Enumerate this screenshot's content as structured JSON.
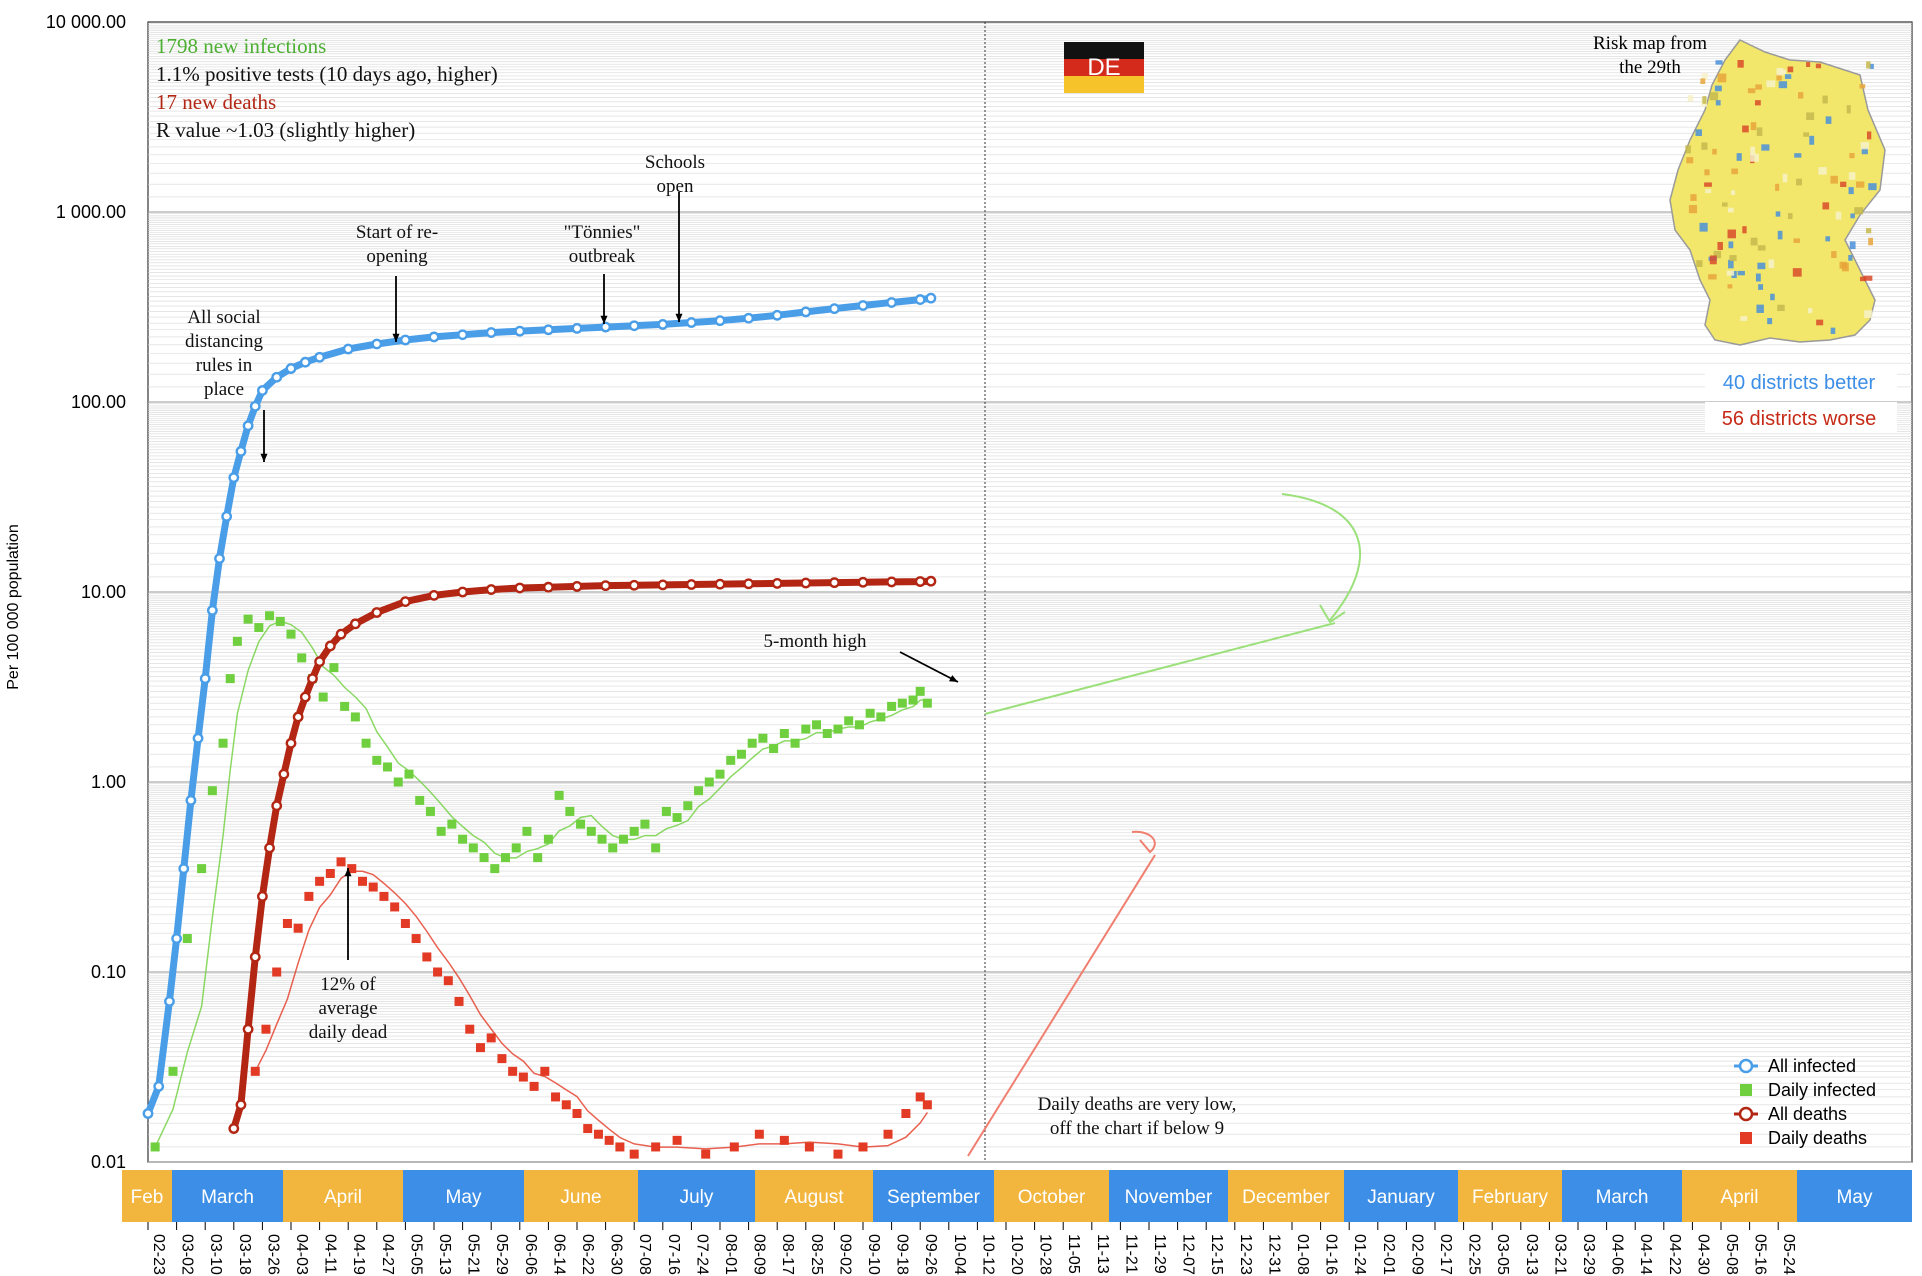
{
  "chart_data": {
    "type": "scatter",
    "title": "",
    "ylabel": "Per 100 000 population",
    "y_scale": "log",
    "ylim": [
      0.01,
      10000
    ],
    "y_ticks": [
      "10 000.00",
      "1 000.00",
      "100.00",
      "10.00",
      "1.00",
      "0.10",
      "0.01"
    ],
    "y_tick_values": [
      10000,
      1000,
      100,
      10,
      1,
      0.1,
      0.01
    ],
    "grid": true,
    "x_tick_labels": [
      "02-23",
      "03-02",
      "03-10",
      "03-18",
      "03-26",
      "04-03",
      "04-11",
      "04-19",
      "04-27",
      "05-05",
      "05-13",
      "05-21",
      "05-29",
      "06-06",
      "06-14",
      "06-22",
      "06-30",
      "07-08",
      "07-16",
      "07-24",
      "08-01",
      "08-09",
      "08-17",
      "08-25",
      "09-02",
      "09-10",
      "09-18",
      "09-26",
      "10-04",
      "10-12",
      "10-20",
      "10-28",
      "11-05",
      "11-13",
      "11-21",
      "11-29",
      "12-07",
      "12-15",
      "12-23",
      "12-31",
      "01-08",
      "01-16",
      "01-24",
      "02-01",
      "02-09",
      "02-17",
      "02-25",
      "03-05",
      "03-13",
      "03-21",
      "03-29",
      "04-06",
      "04-14",
      "04-22",
      "04-30",
      "05-08",
      "05-16",
      "05-24"
    ],
    "months": [
      {
        "label": "Feb",
        "color": "#f2b53d"
      },
      {
        "label": "March",
        "color": "#3d8ee6"
      },
      {
        "label": "April",
        "color": "#f2b53d"
      },
      {
        "label": "May",
        "color": "#3d8ee6"
      },
      {
        "label": "June",
        "color": "#f2b53d"
      },
      {
        "label": "July",
        "color": "#3d8ee6"
      },
      {
        "label": "August",
        "color": "#f2b53d"
      },
      {
        "label": "September",
        "color": "#3d8ee6"
      },
      {
        "label": "October",
        "color": "#f2b53d"
      },
      {
        "label": "November",
        "color": "#3d8ee6"
      },
      {
        "label": "December",
        "color": "#f2b53d"
      },
      {
        "label": "January",
        "color": "#3d8ee6"
      },
      {
        "label": "February",
        "color": "#f2b53d"
      },
      {
        "label": "March",
        "color": "#3d8ee6"
      },
      {
        "label": "April",
        "color": "#f2b53d"
      },
      {
        "label": "May",
        "color": "#3d8ee6"
      }
    ],
    "series": [
      {
        "name": "All infected",
        "color": "#4a9ee8",
        "marker": "circle",
        "x": [
          "02-23",
          "02-26",
          "02-29",
          "03-02",
          "03-04",
          "03-06",
          "03-08",
          "03-10",
          "03-12",
          "03-14",
          "03-16",
          "03-18",
          "03-20",
          "03-22",
          "03-24",
          "03-26",
          "03-30",
          "04-03",
          "04-07",
          "04-11",
          "04-19",
          "04-27",
          "05-05",
          "05-13",
          "05-21",
          "05-29",
          "06-06",
          "06-14",
          "06-22",
          "06-30",
          "07-08",
          "07-16",
          "07-24",
          "08-01",
          "08-09",
          "08-17",
          "08-25",
          "09-02",
          "09-10",
          "09-18",
          "09-26",
          "09-29"
        ],
        "values": [
          0.018,
          0.025,
          0.07,
          0.15,
          0.35,
          0.8,
          1.7,
          3.5,
          8,
          15,
          25,
          40,
          55,
          75,
          95,
          115,
          135,
          150,
          162,
          172,
          190,
          202,
          212,
          220,
          226,
          232,
          236,
          240,
          244,
          248,
          252,
          256,
          262,
          268,
          276,
          286,
          298,
          310,
          322,
          334,
          346,
          352
        ]
      },
      {
        "name": "Daily infected",
        "color": "#6fcf3e",
        "marker": "square",
        "x": [
          "02-25",
          "03-01",
          "03-05",
          "03-09",
          "03-12",
          "03-15",
          "03-17",
          "03-19",
          "03-22",
          "03-25",
          "03-28",
          "03-31",
          "04-03",
          "04-06",
          "04-09",
          "04-12",
          "04-15",
          "04-18",
          "04-21",
          "04-24",
          "04-27",
          "04-30",
          "05-03",
          "05-06",
          "05-09",
          "05-12",
          "05-15",
          "05-18",
          "05-21",
          "05-24",
          "05-27",
          "05-30",
          "06-02",
          "06-05",
          "06-08",
          "06-11",
          "06-14",
          "06-17",
          "06-20",
          "06-23",
          "06-26",
          "06-29",
          "07-02",
          "07-05",
          "07-08",
          "07-11",
          "07-14",
          "07-17",
          "07-20",
          "07-23",
          "07-26",
          "07-29",
          "08-01",
          "08-04",
          "08-07",
          "08-10",
          "08-13",
          "08-16",
          "08-19",
          "08-22",
          "08-25",
          "08-28",
          "08-31",
          "09-03",
          "09-06",
          "09-09",
          "09-12",
          "09-15",
          "09-18",
          "09-21",
          "09-24",
          "09-26",
          "09-28"
        ],
        "values": [
          0.012,
          0.03,
          0.15,
          0.35,
          0.9,
          1.6,
          3.5,
          5.5,
          7.2,
          6.5,
          7.5,
          7.0,
          6.0,
          4.5,
          3.5,
          2.8,
          4.0,
          2.5,
          2.2,
          1.6,
          1.3,
          1.2,
          1.0,
          1.1,
          0.8,
          0.7,
          0.55,
          0.6,
          0.5,
          0.45,
          0.4,
          0.35,
          0.4,
          0.45,
          0.55,
          0.4,
          0.5,
          0.85,
          0.7,
          0.6,
          0.55,
          0.5,
          0.45,
          0.5,
          0.55,
          0.6,
          0.45,
          0.7,
          0.65,
          0.75,
          0.9,
          1.0,
          1.1,
          1.3,
          1.4,
          1.6,
          1.7,
          1.5,
          1.8,
          1.6,
          1.9,
          2.0,
          1.8,
          1.9,
          2.1,
          2.0,
          2.3,
          2.2,
          2.5,
          2.6,
          2.7,
          3.0,
          2.6
        ]
      },
      {
        "name": "All deaths",
        "color": "#b22613",
        "marker": "circle",
        "x": [
          "03-18",
          "03-20",
          "03-22",
          "03-24",
          "03-26",
          "03-28",
          "03-30",
          "04-01",
          "04-03",
          "04-05",
          "04-07",
          "04-09",
          "04-11",
          "04-14",
          "04-17",
          "04-21",
          "04-27",
          "05-05",
          "05-13",
          "05-21",
          "05-29",
          "06-06",
          "06-14",
          "06-22",
          "06-30",
          "07-08",
          "07-16",
          "07-24",
          "08-01",
          "08-09",
          "08-17",
          "08-25",
          "09-02",
          "09-10",
          "09-18",
          "09-26",
          "09-29"
        ],
        "values": [
          0.015,
          0.02,
          0.05,
          0.12,
          0.25,
          0.45,
          0.75,
          1.1,
          1.6,
          2.2,
          2.8,
          3.5,
          4.3,
          5.2,
          6.0,
          6.8,
          7.8,
          8.9,
          9.6,
          10.0,
          10.3,
          10.5,
          10.6,
          10.7,
          10.8,
          10.85,
          10.9,
          10.95,
          11.0,
          11.05,
          11.1,
          11.15,
          11.2,
          11.25,
          11.3,
          11.35,
          11.4
        ]
      },
      {
        "name": "Daily deaths",
        "color": "#e23a24",
        "marker": "square",
        "x": [
          "03-24",
          "03-27",
          "03-30",
          "04-02",
          "04-05",
          "04-08",
          "04-11",
          "04-14",
          "04-17",
          "04-20",
          "04-23",
          "04-26",
          "04-29",
          "05-02",
          "05-05",
          "05-08",
          "05-11",
          "05-14",
          "05-17",
          "05-20",
          "05-23",
          "05-26",
          "05-29",
          "06-01",
          "06-04",
          "06-07",
          "06-10",
          "06-13",
          "06-16",
          "06-19",
          "06-22",
          "06-25",
          "06-28",
          "07-01",
          "07-04",
          "07-08",
          "07-14",
          "07-20",
          "07-28",
          "08-05",
          "08-12",
          "08-19",
          "08-26",
          "09-03",
          "09-10",
          "09-17",
          "09-22",
          "09-26",
          "09-28"
        ],
        "values": [
          0.03,
          0.05,
          0.1,
          0.18,
          0.17,
          0.25,
          0.3,
          0.33,
          0.38,
          0.35,
          0.3,
          0.28,
          0.25,
          0.22,
          0.18,
          0.15,
          0.12,
          0.1,
          0.09,
          0.07,
          0.05,
          0.04,
          0.045,
          0.035,
          0.03,
          0.028,
          0.025,
          0.03,
          0.022,
          0.02,
          0.018,
          0.015,
          0.014,
          0.013,
          0.012,
          0.011,
          0.012,
          0.013,
          0.011,
          0.012,
          0.014,
          0.013,
          0.012,
          0.011,
          0.012,
          0.014,
          0.018,
          0.022,
          0.02
        ]
      }
    ],
    "legend": [
      "All infected",
      "Daily infected",
      "All deaths",
      "Daily deaths"
    ],
    "legend_placement": "bottom-right",
    "stats": {
      "infections": "1798 new infections",
      "positive": "1.1% positive tests (10 days ago, higher)",
      "deaths": "17 new deaths",
      "r_value": "R value ~1.03 (slightly higher)"
    },
    "flag_label": "DE",
    "map_caption_1": "Risk map from",
    "map_caption_2": "the 29th",
    "districts_better": "40 districts better",
    "districts_worse": "56 districts worse",
    "annotations": {
      "social_distancing": [
        "All social",
        "distancing",
        "rules in",
        "place"
      ],
      "reopening": [
        "Start of re-",
        "opening"
      ],
      "tonnies": [
        "\"Tönnies\"",
        "outbreak"
      ],
      "schools": [
        "Schools",
        "open"
      ],
      "five_month": "5-month high",
      "pct_dead": [
        "12% of",
        "average",
        "daily dead"
      ],
      "daily_deaths_note": [
        "Daily deaths are very low,",
        "off the chart if below 9"
      ]
    }
  }
}
